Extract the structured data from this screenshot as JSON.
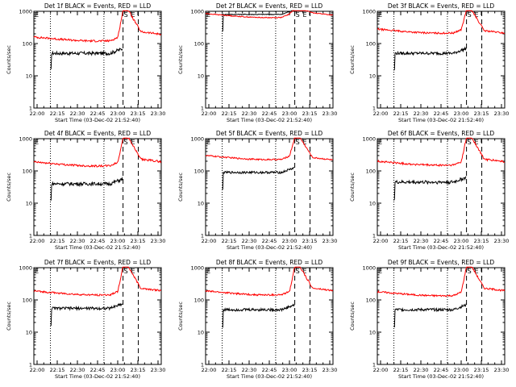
{
  "colors": {
    "events": "#000000",
    "lld": "#ff0000",
    "background": "#ffffff"
  },
  "chart_data": [
    {
      "type": "line",
      "title": "Det 1f BLACK = Events, RED = LLD",
      "xlabel": "Start Time (03-Dec-02 21:52:40)",
      "ylabel": "Counts/sec",
      "xticks": [
        "22:00",
        "22:15",
        "22:30",
        "22:45",
        "23:00",
        "23:15",
        "23:30"
      ],
      "yticks": [
        "1",
        "10",
        "100",
        "1000"
      ],
      "xlim": [
        0,
        100
      ],
      "ylog": [
        1,
        1000
      ],
      "markers": {
        "E1": "E",
        "S": "S",
        "E2": "E"
      },
      "vlines": {
        "dotted": [
          13,
          55
        ],
        "dashed": [
          70,
          82
        ]
      },
      "series": [
        {
          "name": "Events",
          "color": "#000000",
          "start": 13,
          "end": 70,
          "level": 50,
          "noise": 0.12
        },
        {
          "name": "LLD",
          "color": "#ff0000",
          "start": 0,
          "end": 100,
          "level": 160,
          "noise": 0.07,
          "peak": 1100,
          "tail": 230
        }
      ]
    },
    {
      "type": "line",
      "title": "Det 2f BLACK = Events, RED = LLD",
      "xlabel": "Start Time (03-Dec-02 21:52:40)",
      "ylabel": "Counts/sec",
      "xticks": [
        "22:00",
        "22:15",
        "22:30",
        "22:45",
        "23:00",
        "23:15",
        "23:30"
      ],
      "yticks": [
        "1",
        "10",
        "100",
        "1000"
      ],
      "xlim": [
        0,
        100
      ],
      "ylog": [
        1,
        1000
      ],
      "markers": {
        "E1": "E",
        "S": "S",
        "E2": "E"
      },
      "vlines": {
        "dotted": [
          13,
          55
        ],
        "dashed": [
          70,
          82
        ]
      },
      "series": [
        {
          "name": "Events",
          "color": "#000000",
          "start": 13,
          "end": 70,
          "level": 800,
          "noise": 0.03
        },
        {
          "name": "LLD",
          "color": "#ff0000",
          "start": 0,
          "end": 100,
          "level": 850,
          "noise": 0.03,
          "peak": 1200,
          "tail": 900
        }
      ]
    },
    {
      "type": "line",
      "title": "Det 3f BLACK = Events, RED = LLD",
      "xlabel": "Start Time (03-Dec-02 21:52:40)",
      "ylabel": "Counts/sec",
      "xticks": [
        "22:00",
        "22:15",
        "22:30",
        "22:45",
        "23:00",
        "23:15",
        "23:30"
      ],
      "yticks": [
        "1",
        "10",
        "100",
        "1000"
      ],
      "xlim": [
        0,
        100
      ],
      "ylog": [
        1,
        1000
      ],
      "markers": {
        "E1": "E",
        "S": "S",
        "E2": "E"
      },
      "vlines": {
        "dotted": [
          13,
          55
        ],
        "dashed": [
          70,
          82
        ]
      },
      "series": [
        {
          "name": "Events",
          "color": "#000000",
          "start": 13,
          "end": 70,
          "level": 50,
          "noise": 0.1
        },
        {
          "name": "LLD",
          "color": "#ff0000",
          "start": 0,
          "end": 100,
          "level": 280,
          "noise": 0.06,
          "peak": 1100,
          "tail": 250
        }
      ]
    },
    {
      "type": "line",
      "title": "Det 4f BLACK = Events, RED = LLD",
      "xlabel": "Start Time (03-Dec-02 21:52:40)",
      "ylabel": "Counts/sec",
      "xticks": [
        "22:00",
        "22:15",
        "22:30",
        "22:45",
        "23:00",
        "23:15",
        "23:30"
      ],
      "yticks": [
        "1",
        "10",
        "100",
        "1000"
      ],
      "xlim": [
        0,
        100
      ],
      "ylog": [
        1,
        1000
      ],
      "markers": {
        "E1": "E",
        "S": "S",
        "E2": "E"
      },
      "vlines": {
        "dotted": [
          13,
          55
        ],
        "dashed": [
          70,
          82
        ]
      },
      "series": [
        {
          "name": "Events",
          "color": "#000000",
          "start": 13,
          "end": 70,
          "level": 40,
          "noise": 0.12
        },
        {
          "name": "LLD",
          "color": "#ff0000",
          "start": 0,
          "end": 100,
          "level": 190,
          "noise": 0.07,
          "peak": 1100,
          "tail": 230
        }
      ]
    },
    {
      "type": "line",
      "title": "Det 5f BLACK = Events, RED = LLD",
      "xlabel": "Start Time (03-Dec-02 21:52:40)",
      "ylabel": "Counts/sec",
      "xticks": [
        "22:00",
        "22:15",
        "22:30",
        "22:45",
        "23:00",
        "23:15",
        "23:30"
      ],
      "yticks": [
        "1",
        "10",
        "100",
        "1000"
      ],
      "xlim": [
        0,
        100
      ],
      "ylog": [
        1,
        1000
      ],
      "markers": {
        "E1": "E",
        "S": "S",
        "E2": "E"
      },
      "vlines": {
        "dotted": [
          13,
          55
        ],
        "dashed": [
          70,
          82
        ]
      },
      "series": [
        {
          "name": "Events",
          "color": "#000000",
          "start": 13,
          "end": 70,
          "level": 90,
          "noise": 0.08
        },
        {
          "name": "LLD",
          "color": "#ff0000",
          "start": 0,
          "end": 100,
          "level": 300,
          "noise": 0.05,
          "peak": 1100,
          "tail": 260
        }
      ]
    },
    {
      "type": "line",
      "title": "Det 6f BLACK = Events, RED = LLD",
      "xlabel": "Start Time (03-Dec-02 21:52:40)",
      "ylabel": "Counts/sec",
      "xticks": [
        "22:00",
        "22:15",
        "22:30",
        "22:45",
        "23:00",
        "23:15",
        "23:30"
      ],
      "yticks": [
        "1",
        "10",
        "100",
        "1000"
      ],
      "xlim": [
        0,
        100
      ],
      "ylog": [
        1,
        1000
      ],
      "markers": {
        "E1": "E",
        "S": "S",
        "E2": "E"
      },
      "vlines": {
        "dotted": [
          13,
          55
        ],
        "dashed": [
          70,
          82
        ]
      },
      "series": [
        {
          "name": "Events",
          "color": "#000000",
          "start": 13,
          "end": 70,
          "level": 45,
          "noise": 0.12
        },
        {
          "name": "LLD",
          "color": "#ff0000",
          "start": 0,
          "end": 100,
          "level": 200,
          "noise": 0.07,
          "peak": 1100,
          "tail": 230
        }
      ]
    },
    {
      "type": "line",
      "title": "Det 7f BLACK = Events, RED = LLD",
      "xlabel": "Start Time (03-Dec-02 21:52:40)",
      "ylabel": "Counts/sec",
      "xticks": [
        "22:00",
        "22:15",
        "22:30",
        "22:45",
        "23:00",
        "23:15",
        "23:30"
      ],
      "yticks": [
        "1",
        "10",
        "100",
        "1000"
      ],
      "xlim": [
        0,
        100
      ],
      "ylog": [
        1,
        1000
      ],
      "markers": {
        "E1": "E",
        "S": "S",
        "E2": "E"
      },
      "vlines": {
        "dotted": [
          13,
          55
        ],
        "dashed": [
          70,
          82
        ]
      },
      "series": [
        {
          "name": "Events",
          "color": "#000000",
          "start": 13,
          "end": 70,
          "level": 55,
          "noise": 0.1
        },
        {
          "name": "LLD",
          "color": "#ff0000",
          "start": 0,
          "end": 100,
          "level": 190,
          "noise": 0.06,
          "peak": 1100,
          "tail": 230
        }
      ]
    },
    {
      "type": "line",
      "title": "Det 8f BLACK = Events, RED = LLD",
      "xlabel": "Start Time (03-Dec-02 21:52:40)",
      "ylabel": "Counts/sec",
      "xticks": [
        "22:00",
        "22:15",
        "22:30",
        "22:45",
        "23:00",
        "23:15",
        "23:30"
      ],
      "yticks": [
        "1",
        "10",
        "100",
        "1000"
      ],
      "xlim": [
        0,
        100
      ],
      "ylog": [
        1,
        1000
      ],
      "markers": {
        "E1": "E",
        "S": "S",
        "E2": "E"
      },
      "vlines": {
        "dotted": [
          13,
          55
        ],
        "dashed": [
          70,
          82
        ]
      },
      "series": [
        {
          "name": "Events",
          "color": "#000000",
          "start": 13,
          "end": 70,
          "level": 50,
          "noise": 0.1
        },
        {
          "name": "LLD",
          "color": "#ff0000",
          "start": 0,
          "end": 100,
          "level": 190,
          "noise": 0.06,
          "peak": 1100,
          "tail": 230
        }
      ]
    },
    {
      "type": "line",
      "title": "Det 9f BLACK = Events, RED = LLD",
      "xlabel": "Start Time (03-Dec-02 21:52:40)",
      "ylabel": "Counts/sec",
      "xticks": [
        "22:00",
        "22:15",
        "22:30",
        "22:45",
        "23:00",
        "23:15",
        "23:30"
      ],
      "yticks": [
        "1",
        "10",
        "100",
        "1000"
      ],
      "xlim": [
        0,
        100
      ],
      "ylog": [
        1,
        1000
      ],
      "markers": {
        "E1": "E",
        "S": "S",
        "E2": "E"
      },
      "vlines": {
        "dotted": [
          13,
          55
        ],
        "dashed": [
          70,
          82
        ]
      },
      "series": [
        {
          "name": "Events",
          "color": "#000000",
          "start": 13,
          "end": 70,
          "level": 50,
          "noise": 0.1
        },
        {
          "name": "LLD",
          "color": "#ff0000",
          "start": 0,
          "end": 100,
          "level": 180,
          "noise": 0.06,
          "peak": 1100,
          "tail": 230
        }
      ]
    }
  ]
}
